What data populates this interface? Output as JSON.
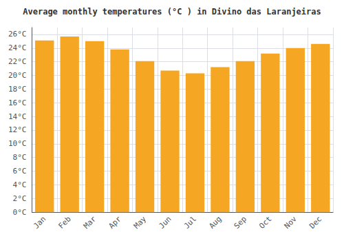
{
  "chart_data": {
    "type": "bar",
    "title": "Average monthly temperatures (°C ) in Divino das Laranjeiras",
    "categories": [
      "Jan",
      "Feb",
      "Mar",
      "Apr",
      "May",
      "Jun",
      "Jul",
      "Aug",
      "Sep",
      "Oct",
      "Nov",
      "Dec"
    ],
    "values": [
      25.1,
      25.7,
      25.0,
      23.8,
      22.1,
      20.7,
      20.3,
      21.2,
      22.1,
      23.2,
      24.0,
      24.6
    ],
    "color": "#F5A623",
    "ylim": [
      0,
      27
    ],
    "yticks": [
      {
        "value": 0,
        "label": "0°C"
      },
      {
        "value": 2,
        "label": "2°C"
      },
      {
        "value": 4,
        "label": "4°C"
      },
      {
        "value": 6,
        "label": "6°C"
      },
      {
        "value": 8,
        "label": "8°C"
      },
      {
        "value": 10,
        "label": "10°C"
      },
      {
        "value": 12,
        "label": "12°C"
      },
      {
        "value": 14,
        "label": "14°C"
      },
      {
        "value": 16,
        "label": "16°C"
      },
      {
        "value": 18,
        "label": "18°C"
      },
      {
        "value": 20,
        "label": "20°C"
      },
      {
        "value": 22,
        "label": "22°C"
      },
      {
        "value": 24,
        "label": "24°C"
      },
      {
        "value": 26,
        "label": "26°C"
      }
    ],
    "grid": true
  }
}
